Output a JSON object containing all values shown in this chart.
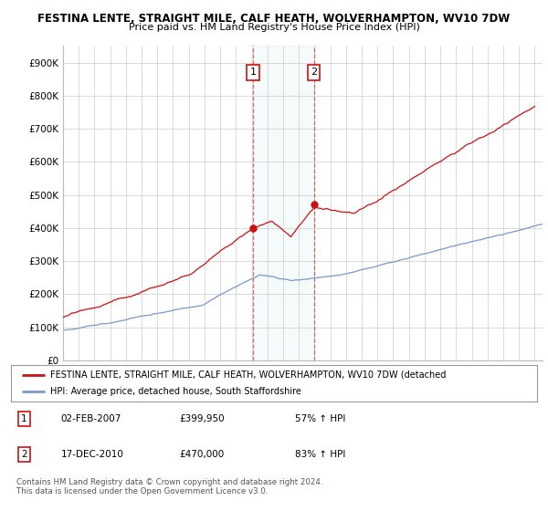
{
  "title": "FESTINA LENTE, STRAIGHT MILE, CALF HEATH, WOLVERHAMPTON, WV10 7DW",
  "subtitle": "Price paid vs. HM Land Registry's House Price Index (HPI)",
  "ylabel_ticks": [
    "£0",
    "£100K",
    "£200K",
    "£300K",
    "£400K",
    "£500K",
    "£600K",
    "£700K",
    "£800K",
    "£900K"
  ],
  "ytick_vals": [
    0,
    100000,
    200000,
    300000,
    400000,
    500000,
    600000,
    700000,
    800000,
    900000
  ],
  "ylim": [
    0,
    950000
  ],
  "xlim_start": 1995.0,
  "xlim_end": 2025.5,
  "hpi_color": "#7799cc",
  "price_color": "#cc1111",
  "marker1_date": 2007.08,
  "marker2_date": 2010.96,
  "marker1_price": 399950,
  "marker2_price": 470000,
  "legend_label_price": "FESTINA LENTE, STRAIGHT MILE, CALF HEATH, WOLVERHAMPTON, WV10 7DW (detached",
  "legend_label_hpi": "HPI: Average price, detached house, South Staffordshire",
  "annotation1_date": "02-FEB-2007",
  "annotation1_price": "£399,950",
  "annotation1_hpi": "57% ↑ HPI",
  "annotation2_date": "17-DEC-2010",
  "annotation2_price": "£470,000",
  "annotation2_hpi": "83% ↑ HPI",
  "footer": "Contains HM Land Registry data © Crown copyright and database right 2024.\nThis data is licensed under the Open Government Licence v3.0.",
  "background_color": "#ffffff",
  "grid_color": "#cccccc"
}
